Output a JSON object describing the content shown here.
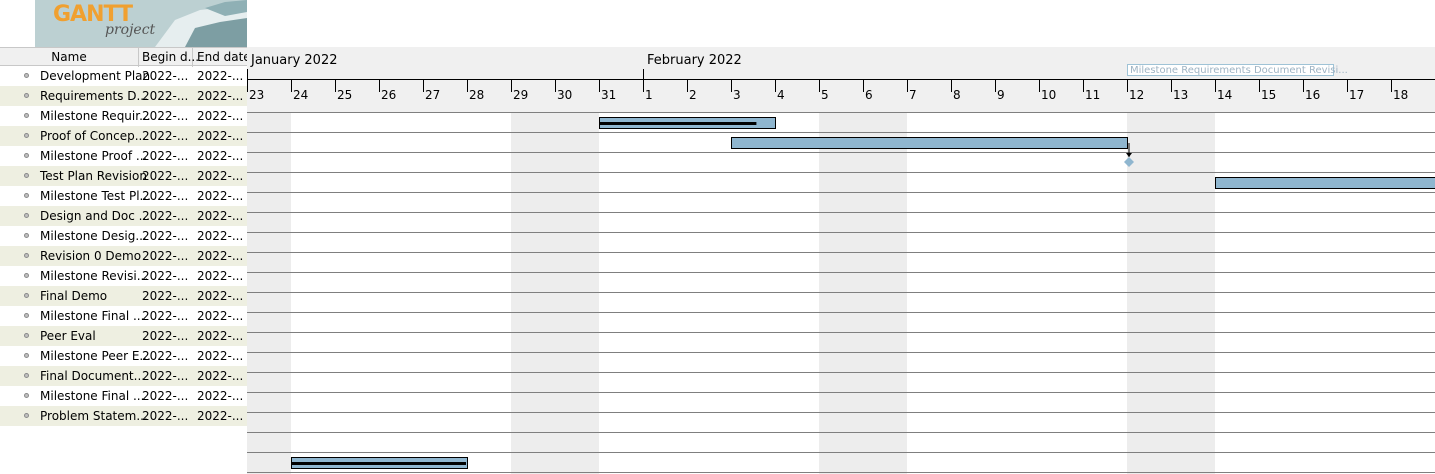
{
  "app": {
    "logo_main": "GANTT",
    "logo_sub": "project"
  },
  "table": {
    "headers": {
      "name": "Name",
      "begin": "Begin d...",
      "end": "End date"
    },
    "rows": [
      {
        "name": "Development Plan",
        "begin": "2022-...",
        "end": "2022-..."
      },
      {
        "name": "Requirements D...",
        "begin": "2022-...",
        "end": "2022-..."
      },
      {
        "name": "Milestone Requir...",
        "begin": "2022-...",
        "end": "2022-..."
      },
      {
        "name": "Proof of Concep...",
        "begin": "2022-...",
        "end": "2022-..."
      },
      {
        "name": "Milestone Proof ...",
        "begin": "2022-...",
        "end": "2022-..."
      },
      {
        "name": "Test Plan Revision",
        "begin": "2022-...",
        "end": "2022-..."
      },
      {
        "name": "Milestone Test Pl...",
        "begin": "2022-...",
        "end": "2022-..."
      },
      {
        "name": "Design and Doc ...",
        "begin": "2022-...",
        "end": "2022-..."
      },
      {
        "name": "Milestone Desig...",
        "begin": "2022-...",
        "end": "2022-..."
      },
      {
        "name": "Revision 0 Demo",
        "begin": "2022-...",
        "end": "2022-..."
      },
      {
        "name": "Milestone Revisi...",
        "begin": "2022-...",
        "end": "2022-..."
      },
      {
        "name": "Final Demo",
        "begin": "2022-...",
        "end": "2022-..."
      },
      {
        "name": "Milestone Final ...",
        "begin": "2022-...",
        "end": "2022-..."
      },
      {
        "name": "Peer Eval",
        "begin": "2022-...",
        "end": "2022-..."
      },
      {
        "name": "Milestone Peer E...",
        "begin": "2022-...",
        "end": "2022-..."
      },
      {
        "name": "Final Document...",
        "begin": "2022-...",
        "end": "2022-..."
      },
      {
        "name": "Milestone Final ...",
        "begin": "2022-...",
        "end": "2022-..."
      },
      {
        "name": "Problem Statem...",
        "begin": "2022-...",
        "end": "2022-..."
      }
    ]
  },
  "timeline": {
    "months": [
      {
        "label": "January 2022",
        "start_index": 0
      },
      {
        "label": "February 2022",
        "start_index": 9
      }
    ],
    "days": [
      "23",
      "24",
      "25",
      "26",
      "27",
      "28",
      "29",
      "30",
      "31",
      "1",
      "2",
      "3",
      "4",
      "5",
      "6",
      "7",
      "8",
      "9",
      "10",
      "11",
      "12",
      "13",
      "14",
      "15",
      "16",
      "17",
      "18"
    ],
    "weekend_indices": [
      0,
      6,
      7,
      13,
      14,
      20,
      21
    ],
    "tasks": [
      {
        "row": 0,
        "start": 8,
        "end": 12,
        "progress": 0.9
      },
      {
        "row": 1,
        "start": 11,
        "end": 20,
        "progress": 0
      },
      {
        "row": 3,
        "start": 22,
        "end": 27,
        "progress": 0
      },
      {
        "row": 17,
        "start": 1,
        "end": 5,
        "progress": 1.0
      }
    ],
    "milestones": [
      {
        "row": 2,
        "at": 20
      }
    ],
    "dependencies": [
      {
        "from_row": 1,
        "to_row": 2
      }
    ],
    "note": "Milestone Requirements Document Revisi..."
  },
  "colors": {
    "bar": "#8fb6cf",
    "bar_border": "#000000",
    "progress": "#000000",
    "weekend": "#ededed",
    "header_bg": "#f0f0f0",
    "alt_row": "#eeefe1"
  }
}
